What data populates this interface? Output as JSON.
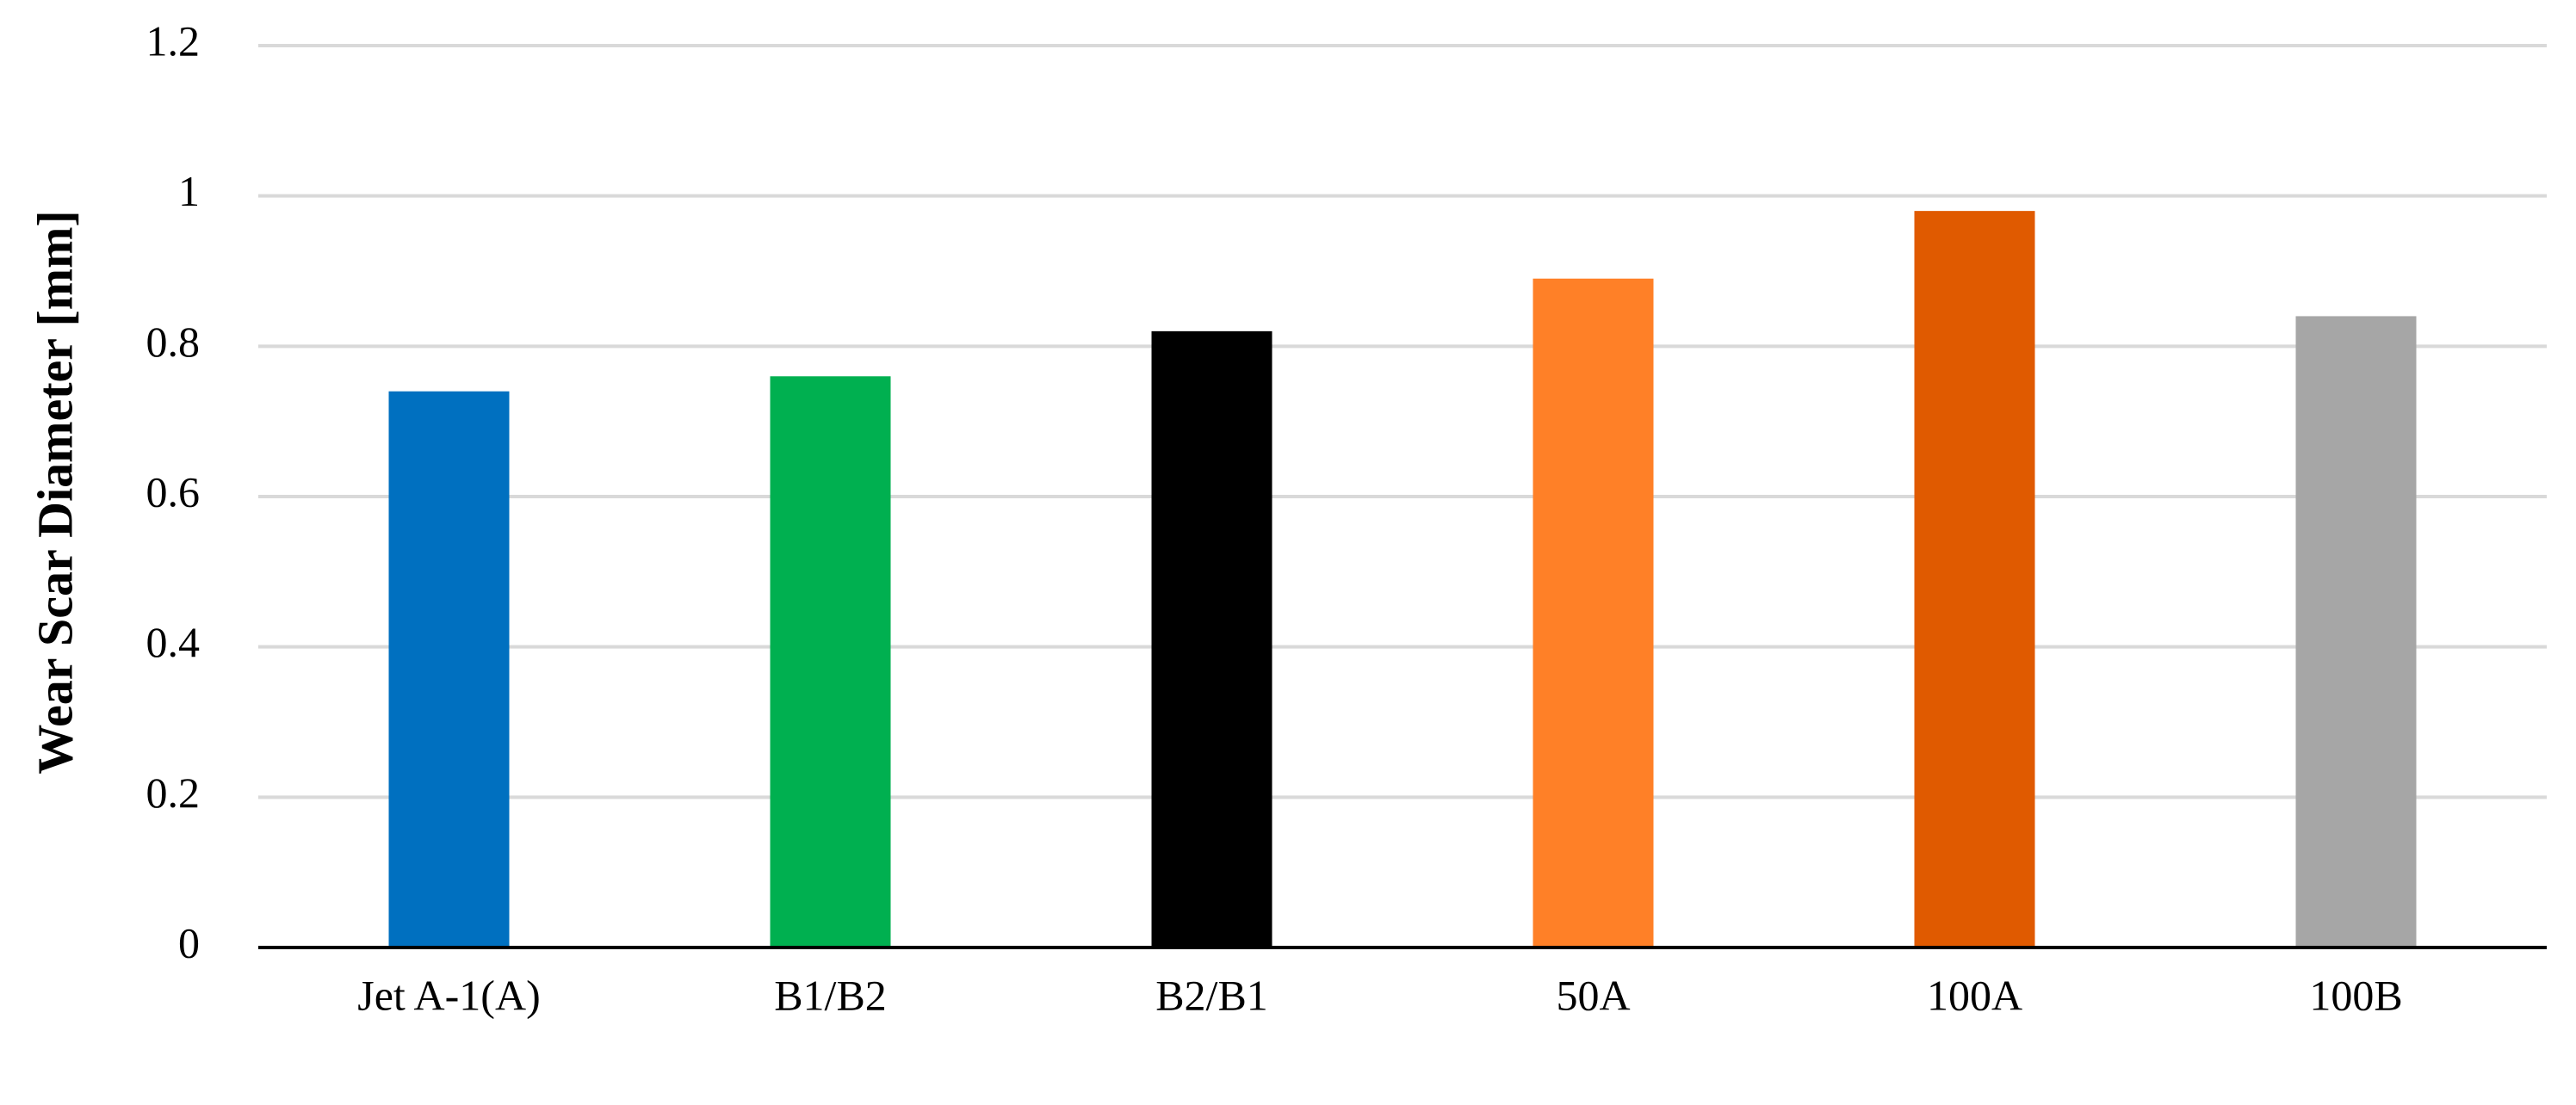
{
  "chart_data": {
    "type": "bar",
    "y_label": "Wear Scar Diameter [mm]",
    "categories": [
      "Jet A-1(A)",
      "B1/B2",
      "B2/B1",
      "50A",
      "100A",
      "100B"
    ],
    "values": [
      0.74,
      0.76,
      0.82,
      0.89,
      0.98,
      0.84
    ],
    "colors": [
      "#0070c0",
      "#00b050",
      "#000000",
      "#ff8027",
      "#e05a00",
      "#a6a6a6"
    ],
    "ylim": [
      0,
      1.2
    ],
    "yticks": [
      0,
      0.2,
      0.4,
      0.6,
      0.8,
      1,
      1.2
    ],
    "grid": true
  }
}
